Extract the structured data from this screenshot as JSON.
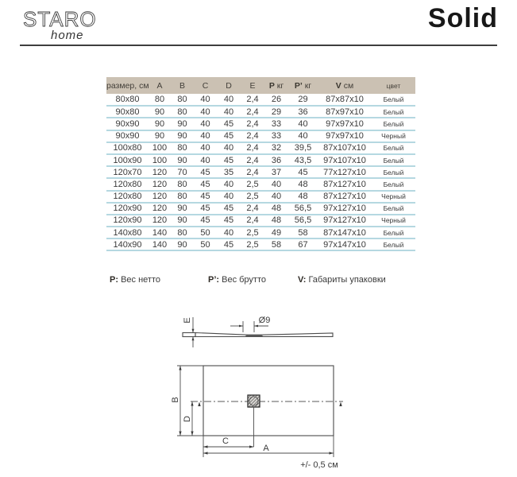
{
  "brand": {
    "logo_primary": "STARO",
    "logo_secondary": "home",
    "product_title": "Solid"
  },
  "spec_table": {
    "columns": [
      {
        "bold": "",
        "text": "размер, см"
      },
      {
        "bold": "",
        "text": "A"
      },
      {
        "bold": "",
        "text": "B"
      },
      {
        "bold": "",
        "text": "C"
      },
      {
        "bold": "",
        "text": "D"
      },
      {
        "bold": "",
        "text": "E"
      },
      {
        "bold": "P",
        "text": " кг"
      },
      {
        "bold": "P’",
        "text": " кг"
      },
      {
        "bold": "V",
        "text": " см"
      },
      {
        "bold": "",
        "text": "цвет"
      }
    ],
    "rows": [
      [
        "80x80",
        "80",
        "80",
        "40",
        "40",
        "2,4",
        "26",
        "29",
        "87x87x10",
        "Белый"
      ],
      [
        "90x80",
        "90",
        "80",
        "40",
        "40",
        "2,4",
        "29",
        "36",
        "87x97x10",
        "Белый"
      ],
      [
        "90x90",
        "90",
        "90",
        "40",
        "45",
        "2,4",
        "33",
        "40",
        "97x97x10",
        "Белый"
      ],
      [
        "90x90",
        "90",
        "90",
        "40",
        "45",
        "2,4",
        "33",
        "40",
        "97x97x10",
        "Черный"
      ],
      [
        "100x80",
        "100",
        "80",
        "40",
        "40",
        "2,4",
        "32",
        "39,5",
        "87x107x10",
        "Белый"
      ],
      [
        "100x90",
        "100",
        "90",
        "40",
        "45",
        "2,4",
        "36",
        "43,5",
        "97x107x10",
        "Белый"
      ],
      [
        "120x70",
        "120",
        "70",
        "45",
        "35",
        "2,4",
        "37",
        "45",
        "77x127x10",
        "Белый"
      ],
      [
        "120x80",
        "120",
        "80",
        "45",
        "40",
        "2,5",
        "40",
        "48",
        "87x127x10",
        "Белый"
      ],
      [
        "120x80",
        "120",
        "80",
        "45",
        "40",
        "2,5",
        "40",
        "48",
        "87x127x10",
        "Черный"
      ],
      [
        "120x90",
        "120",
        "90",
        "45",
        "45",
        "2,4",
        "48",
        "56,5",
        "97x127x10",
        "Белый"
      ],
      [
        "120x90",
        "120",
        "90",
        "45",
        "45",
        "2,4",
        "48",
        "56,5",
        "97x127x10",
        "Черный"
      ],
      [
        "140x80",
        "140",
        "80",
        "50",
        "40",
        "2,5",
        "49",
        "58",
        "87x147x10",
        "Белый"
      ],
      [
        "140x90",
        "140",
        "90",
        "50",
        "45",
        "2,5",
        "58",
        "67",
        "97x147x10",
        "Белый"
      ]
    ]
  },
  "legend": {
    "items": [
      {
        "symbol": "P:",
        "label": "Вес нетто"
      },
      {
        "symbol": "P’:",
        "label": "Вес брутто"
      },
      {
        "symbol": "V:",
        "label": "Габариты упаковки"
      }
    ]
  },
  "drawing": {
    "side_view": {
      "thickness_label": "E",
      "drain_diameter_label": "Ø9"
    },
    "plan_view": {
      "width_label": "A",
      "depth_label": "B",
      "drain_offset_x_label": "C",
      "drain_offset_y_label": "D",
      "tolerance_note": "+/- 0,5 см"
    }
  },
  "colors": {
    "table_header_bg": "#cbc1b3",
    "row_divider": "#b5d8e1",
    "line_color": "#4c4c4c"
  }
}
